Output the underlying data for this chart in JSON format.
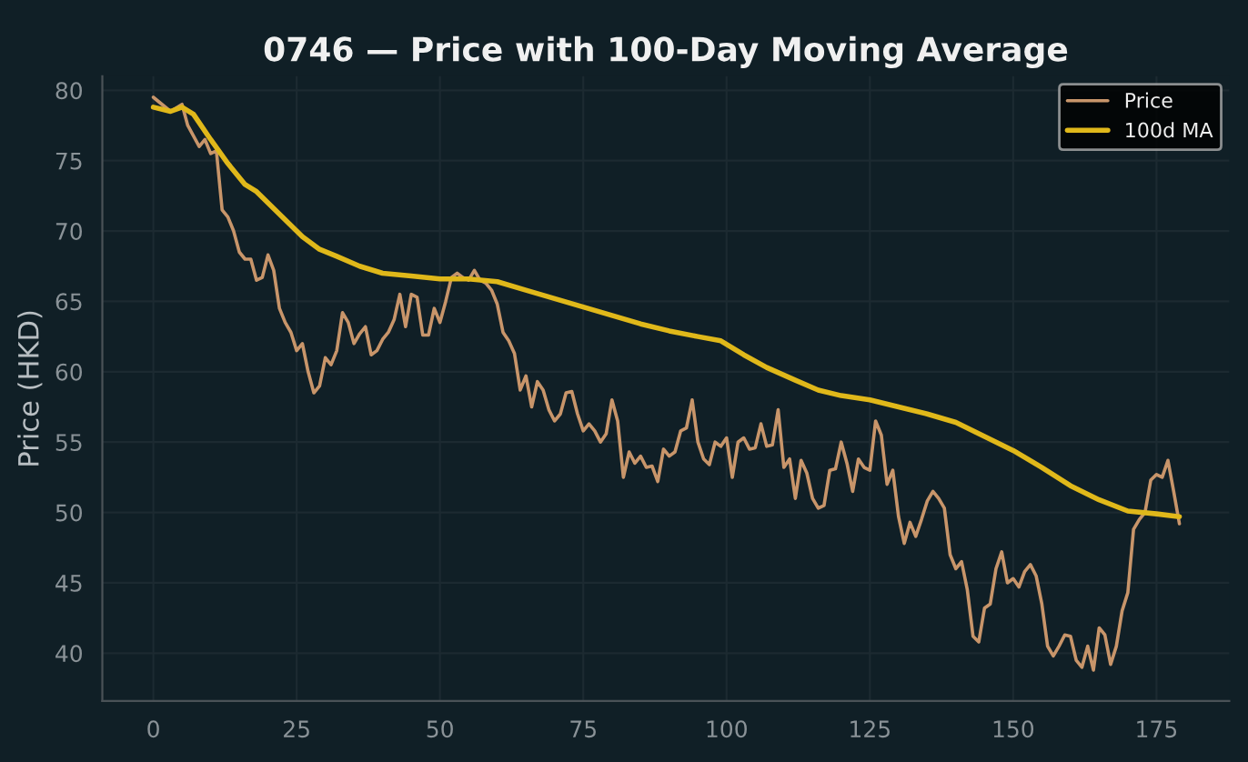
{
  "chart_data": {
    "type": "line",
    "title": "0746 — Price with 100-Day Moving Average",
    "ylabel": "Price (HKD)",
    "xlim": [
      -8.9,
      187.7
    ],
    "ylim": [
      36.6,
      81.0
    ],
    "xticks": [
      0,
      25,
      50,
      75,
      100,
      125,
      150,
      175
    ],
    "yticks": [
      40,
      45,
      50,
      55,
      60,
      65,
      70,
      75,
      80
    ],
    "grid": true,
    "legend": "top right",
    "line_style": "solid",
    "marker": "none",
    "series": [
      {
        "name": "Price",
        "color": "#c8956a",
        "x": [
          0,
          3,
          5,
          6,
          8,
          9,
          10,
          11,
          12,
          13,
          14,
          15,
          16,
          17,
          18,
          19,
          20,
          21,
          22,
          23,
          24,
          25,
          26,
          27,
          28,
          29,
          30,
          31,
          32,
          33,
          34,
          35,
          36,
          37,
          38,
          39,
          40,
          41,
          42,
          43,
          44,
          45,
          46,
          47,
          48,
          49,
          50,
          51,
          52,
          53,
          54,
          55,
          56,
          57,
          58,
          59,
          60,
          61,
          62,
          63,
          64,
          65,
          66,
          67,
          68,
          69,
          70,
          71,
          72,
          73,
          74,
          75,
          76,
          77,
          78,
          79,
          80,
          81,
          82,
          83,
          84,
          85,
          86,
          87,
          88,
          89,
          90,
          91,
          92,
          93,
          94,
          95,
          96,
          97,
          98,
          99,
          100,
          101,
          102,
          103,
          104,
          105,
          106,
          107,
          108,
          109,
          110,
          111,
          112,
          113,
          114,
          115,
          116,
          117,
          118,
          119,
          120,
          121,
          122,
          123,
          124,
          125,
          126,
          127,
          128,
          129,
          130,
          131,
          132,
          133,
          134,
          135,
          136,
          137,
          138,
          139,
          140,
          141,
          142,
          143,
          144,
          145,
          146,
          147,
          148,
          149,
          150,
          151,
          152,
          153,
          154,
          155,
          156,
          157,
          158,
          159,
          160,
          161,
          162,
          163,
          164,
          165,
          166,
          167,
          168,
          169,
          170,
          171,
          172,
          173,
          174,
          175,
          176,
          177,
          178,
          179
        ],
        "values": [
          79.5,
          78.5,
          79,
          77.5,
          76,
          76.5,
          75.5,
          75.7,
          71.5,
          71,
          70,
          68.5,
          68,
          68,
          66.5,
          66.7,
          68.3,
          67.2,
          64.5,
          63.5,
          62.8,
          61.5,
          62,
          60,
          58.5,
          59,
          61,
          60.5,
          61.5,
          64.2,
          63.5,
          62,
          62.7,
          63.2,
          61.2,
          61.5,
          62.3,
          62.8,
          63.7,
          65.5,
          63.2,
          65.5,
          65.3,
          62.6,
          62.6,
          64.5,
          63.5,
          65,
          66.7,
          67,
          66.7,
          66.5,
          67.2,
          66.5,
          66.3,
          65.8,
          64.8,
          62.8,
          62.2,
          61.3,
          58.7,
          59.7,
          57.5,
          59.3,
          58.7,
          57.3,
          56.5,
          57,
          58.5,
          58.6,
          57,
          55.8,
          56.3,
          55.8,
          55,
          55.6,
          58,
          56.5,
          52.5,
          54.3,
          53.5,
          54,
          53.2,
          53.3,
          52.2,
          54.5,
          54,
          54.3,
          55.8,
          56,
          58,
          55,
          53.8,
          53.4,
          55,
          54.7,
          55.3,
          52.5,
          55,
          55.3,
          54.5,
          54.6,
          56.3,
          54.7,
          54.8,
          57.3,
          53.2,
          53.8,
          51,
          53.7,
          52.8,
          51,
          50.3,
          50.5,
          53,
          53.1,
          55,
          53.5,
          51.5,
          53.8,
          53.2,
          53,
          56.5,
          55.5,
          52,
          53,
          49.7,
          47.8,
          49.3,
          48.3,
          49.5,
          50.8,
          51.5,
          51,
          50.3,
          47,
          46,
          46.5,
          44.5,
          41.2,
          40.8,
          43.2,
          43.5,
          46,
          47.2,
          45,
          45.3,
          44.7,
          45.8,
          46.3,
          45.5,
          43.5,
          40.5,
          39.8,
          40.5,
          41.3,
          41.2,
          39.5,
          39,
          40.5,
          38.8,
          41.8,
          41.3,
          39.2,
          40.5,
          43,
          44.3,
          48.8,
          49.5,
          50,
          52.3,
          52.7,
          52.5,
          53.7,
          51.5,
          49.2
        ]
      },
      {
        "name": "100d MA",
        "color": "#e0b81a",
        "x": [
          0,
          3,
          5,
          7,
          10,
          13,
          16,
          18,
          22,
          26,
          29,
          32,
          36,
          40,
          45,
          50,
          55,
          60,
          65,
          70,
          75,
          80,
          85,
          90,
          95,
          99,
          103,
          107,
          112,
          116,
          120,
          125,
          130,
          135,
          140,
          145,
          150,
          155,
          160,
          165,
          170,
          175,
          179
        ],
        "values": [
          78.8,
          78.5,
          78.8,
          78.3,
          76.5,
          74.8,
          73.3,
          72.8,
          71.2,
          69.6,
          68.7,
          68.2,
          67.5,
          67,
          66.8,
          66.6,
          66.6,
          66.4,
          65.8,
          65.2,
          64.6,
          64,
          63.4,
          62.9,
          62.5,
          62.2,
          61.2,
          60.3,
          59.4,
          58.7,
          58.3,
          58,
          57.5,
          57,
          56.4,
          55.4,
          54.4,
          53.2,
          51.9,
          50.9,
          50.1,
          49.9,
          49.7
        ]
      }
    ]
  }
}
